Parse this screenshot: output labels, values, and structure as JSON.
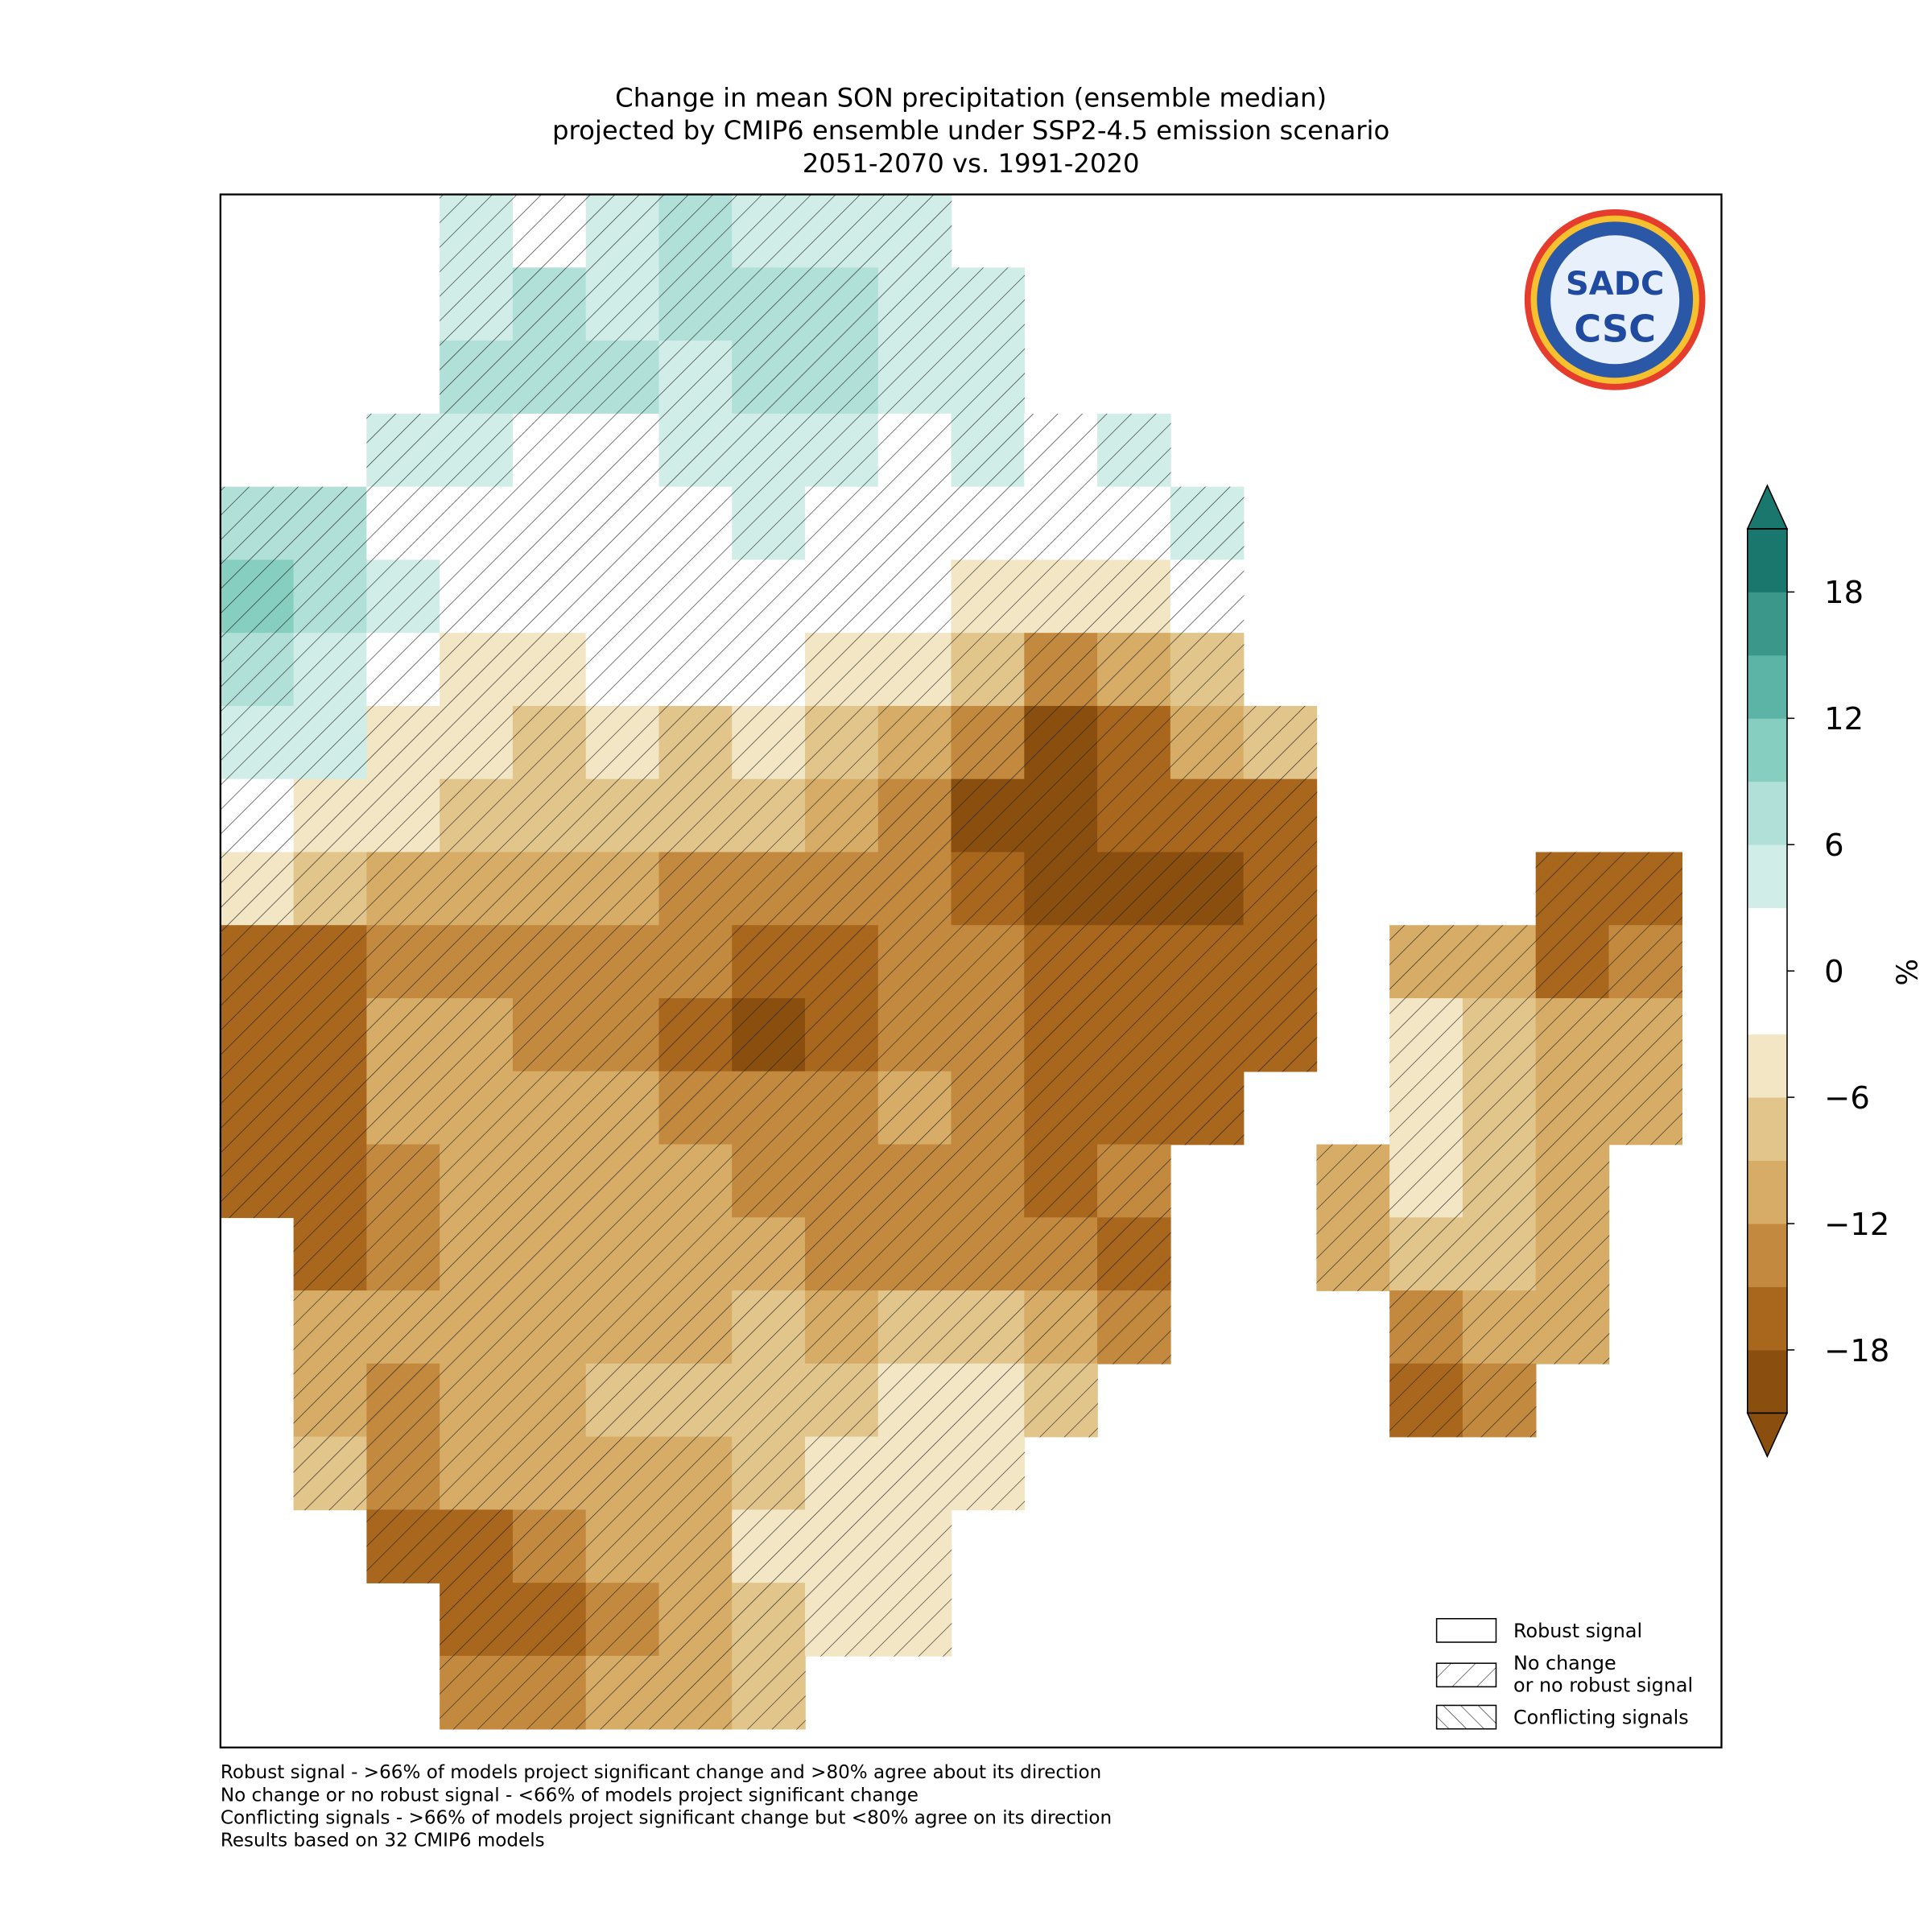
{
  "chart_data": {
    "type": "grid-map",
    "title": [
      "Change in mean SON precipitation (ensemble median)",
      "projected by CMIP6 ensemble under SSP2-4.5 emission scenario",
      "2051-2070 vs. 1991-2020"
    ],
    "colorbar_label": "%",
    "clim": [
      -21,
      21
    ],
    "colors": [
      "#8a4f0e",
      "#a9661d",
      "#c38a3f",
      "#d6ac66",
      "#e2c58b",
      "#f2e6c4",
      "#ffffff",
      "#ffffff",
      "#d1ede8",
      "#b0e0d7",
      "#86cfc0",
      "#5cb4a6",
      "#3a978a",
      "#1a776e"
    ],
    "cticks": [
      {
        "value": -18,
        "label": "−18"
      },
      {
        "value": -12,
        "label": "−12"
      },
      {
        "value": -6,
        "label": "−6"
      },
      0,
      6,
      12,
      18
    ],
    "grid": [
      [
        null,
        null,
        null,
        4,
        2,
        5,
        8,
        5,
        5,
        4,
        null,
        null,
        null,
        null,
        null,
        null,
        null,
        null,
        null,
        null
      ],
      [
        null,
        null,
        null,
        5,
        7,
        5,
        6,
        7,
        7,
        4,
        5,
        null,
        null,
        null,
        null,
        null,
        null,
        null,
        null,
        null
      ],
      [
        null,
        null,
        null,
        6,
        7,
        6,
        5,
        7,
        7,
        5,
        4,
        null,
        null,
        null,
        null,
        null,
        null,
        null,
        null,
        null
      ],
      [
        null,
        null,
        4,
        5,
        2,
        2,
        5,
        5,
        5,
        2,
        4,
        2,
        4,
        null,
        null,
        null,
        null,
        null,
        null,
        null
      ],
      [
        7,
        6,
        2,
        1,
        1,
        1,
        2,
        4,
        1,
        1,
        0,
        1,
        1,
        3,
        null,
        null,
        null,
        null,
        null,
        null
      ],
      [
        9,
        6,
        3,
        1,
        0,
        0,
        0,
        0,
        0,
        -3,
        -5,
        -5,
        -5,
        -2,
        null,
        null,
        null,
        null,
        null,
        null
      ],
      [
        8,
        4,
        -2,
        -4,
        -4,
        -3,
        -1,
        -1,
        -4,
        -4,
        -8,
        -14,
        -10,
        -8,
        null,
        null,
        null,
        null,
        null,
        null
      ],
      [
        5,
        3,
        -5,
        -6,
        -7,
        -6,
        -7,
        -6,
        -9,
        -12,
        -15,
        -19,
        -17,
        -12,
        -9,
        null,
        null,
        null,
        null,
        null
      ],
      [
        2,
        -5,
        -6,
        -7,
        -9,
        -8,
        -9,
        -9,
        -10,
        -15,
        -19,
        -19,
        -18,
        -17,
        -18,
        null,
        null,
        null,
        null,
        null
      ],
      [
        -6,
        -8,
        -10,
        -10,
        -12,
        -12,
        -14,
        -14,
        -13,
        -15,
        -18,
        -19,
        -19,
        -19,
        -18,
        null,
        null,
        null,
        -18,
        -17
      ],
      [
        -16,
        -16,
        -13,
        -14,
        -14,
        -13,
        -15,
        -17,
        -16,
        -15,
        -15,
        -16,
        -18,
        -18,
        -18,
        null,
        -10,
        -11,
        -16,
        -14
      ],
      [
        -17,
        -17,
        -12,
        -12,
        -14,
        -13,
        -16,
        -19,
        -16,
        -14,
        -15,
        -17,
        -18,
        -18,
        -17,
        null,
        -6,
        -8,
        -11,
        -12
      ],
      [
        -17,
        -17,
        -12,
        -10,
        -12,
        -11,
        -13,
        -15,
        -14,
        -12,
        -14,
        -17,
        -18,
        -17,
        null,
        null,
        -6,
        -7,
        -10,
        -12
      ],
      [
        -17,
        -17,
        -13,
        -10,
        -11,
        -10,
        -11,
        -13,
        -15,
        -14,
        -14,
        -16,
        -15,
        null,
        null,
        -10,
        -6,
        -7,
        -11,
        null
      ],
      [
        null,
        -16,
        -14,
        -11,
        -11,
        -10,
        -11,
        -12,
        -14,
        -15,
        -13,
        -15,
        -16,
        null,
        null,
        -10,
        -8,
        -9,
        -12,
        null
      ],
      [
        null,
        -12,
        -11,
        -10,
        -11,
        -10,
        -10,
        -9,
        -10,
        -8,
        -9,
        -12,
        -14,
        null,
        null,
        null,
        -13,
        -12,
        -10,
        null
      ],
      [
        null,
        -10,
        -13,
        -11,
        -10,
        -9,
        -9,
        -7,
        -7,
        -6,
        -6,
        -8,
        null,
        null,
        null,
        null,
        -17,
        -15,
        null,
        null
      ],
      [
        null,
        -9,
        -15,
        -12,
        -10,
        -10,
        -11,
        -7,
        -6,
        -6,
        -6,
        null,
        null,
        null,
        null,
        null,
        null,
        null,
        null,
        null
      ],
      [
        null,
        null,
        -16,
        -17,
        -14,
        -11,
        -10,
        -6,
        -5,
        -5,
        null,
        null,
        null,
        null,
        null,
        null,
        null,
        null,
        null,
        null
      ],
      [
        null,
        null,
        null,
        -16,
        -16,
        -15,
        -12,
        -9,
        -6,
        -6,
        null,
        null,
        null,
        null,
        null,
        null,
        null,
        null,
        null,
        null
      ],
      [
        null,
        null,
        null,
        -15,
        -14,
        -12,
        -10,
        -8,
        null,
        null,
        null,
        null,
        null,
        null,
        null,
        null,
        null,
        null,
        null,
        null
      ]
    ],
    "legend": [
      "Robust signal",
      [
        "No change",
        "or no robust signal"
      ],
      "Conflicting signals"
    ],
    "footnotes": [
      "Robust signal - >66% of models project significant change and >80% agree about its direction",
      "No change or no robust signal - <66% of models project significant change",
      "Conflicting signals - >66% of models project significant change but <80% agree on its direction",
      "Results based on 32 CMIP6 models"
    ],
    "logo_text": [
      "SADC",
      "CSC"
    ]
  }
}
